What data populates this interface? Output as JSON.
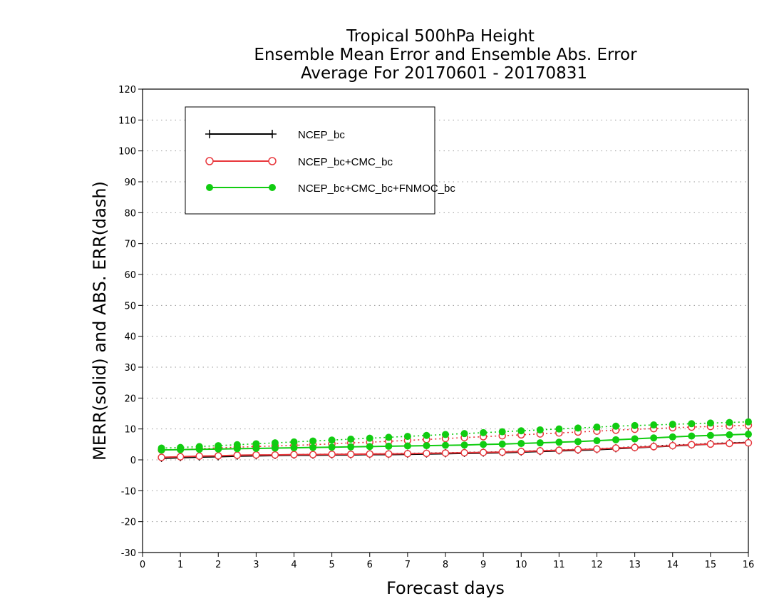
{
  "chart_data": {
    "type": "line",
    "title": [
      "Tropical 500hPa Height",
      "Ensemble Mean Error and Ensemble Abs. Error",
      "Average For 20170601 - 20170831"
    ],
    "xlabel": "Forecast days",
    "ylabel": "MERR(solid) and ABS. ERR(dash)",
    "xlim": [
      0,
      16
    ],
    "ylim": [
      -30,
      120
    ],
    "xticks": [
      "0",
      "1",
      "2",
      "3",
      "4",
      "5",
      "6",
      "7",
      "8",
      "9",
      "10",
      "11",
      "12",
      "13",
      "14",
      "15",
      "16"
    ],
    "yticks": [
      "-30",
      "-20",
      "-10",
      "0",
      "10",
      "20",
      "30",
      "40",
      "50",
      "60",
      "70",
      "80",
      "90",
      "100",
      "110",
      "120"
    ],
    "grid": true,
    "legend_placement": "top-left",
    "x": [
      0.5,
      1,
      1.5,
      2,
      2.5,
      3,
      3.5,
      4,
      4.5,
      5,
      5.5,
      6,
      6.5,
      7,
      7.5,
      8,
      8.5,
      9,
      9.5,
      10,
      10.5,
      11,
      11.5,
      12,
      12.5,
      13,
      13.5,
      14,
      14.5,
      15,
      15.5,
      16
    ],
    "series": [
      {
        "name": "NCEP_bc",
        "color": "#000000",
        "marker": "plus",
        "merr": [
          0.5,
          0.7,
          0.9,
          1.0,
          1.2,
          1.3,
          1.4,
          1.5,
          1.5,
          1.6,
          1.6,
          1.7,
          1.7,
          1.8,
          1.9,
          2.0,
          2.1,
          2.2,
          2.3,
          2.5,
          2.7,
          2.9,
          3.1,
          3.3,
          3.6,
          3.9,
          4.2,
          4.5,
          4.8,
          5.1,
          5.4,
          5.6
        ],
        "abs_err": [
          0.8,
          1.0,
          1.1,
          1.3,
          1.4,
          1.5,
          1.6,
          1.7,
          1.8,
          1.8,
          1.9,
          1.9,
          2.0,
          2.1,
          2.2,
          2.3,
          2.4,
          2.5,
          2.6,
          2.8,
          3.0,
          3.2,
          3.4,
          3.6,
          3.9,
          4.2,
          4.5,
          4.8,
          5.0,
          5.3,
          5.5,
          5.7
        ]
      },
      {
        "name": "NCEP_bc+CMC_bc",
        "color": "#e8373c",
        "marker": "open-circle",
        "merr": [
          0.8,
          1.0,
          1.2,
          1.3,
          1.5,
          1.6,
          1.6,
          1.7,
          1.7,
          1.8,
          1.8,
          1.9,
          1.9,
          2.0,
          2.1,
          2.2,
          2.3,
          2.4,
          2.5,
          2.7,
          2.9,
          3.1,
          3.3,
          3.5,
          3.8,
          4.0,
          4.3,
          4.6,
          4.9,
          5.1,
          5.3,
          5.5
        ],
        "abs_err": [
          3.2,
          3.4,
          3.6,
          3.9,
          4.1,
          4.3,
          4.5,
          4.7,
          4.9,
          5.2,
          5.5,
          5.7,
          6.0,
          6.3,
          6.6,
          6.9,
          7.2,
          7.5,
          7.8,
          8.1,
          8.4,
          8.7,
          9.0,
          9.3,
          9.6,
          9.9,
          10.1,
          10.4,
          10.6,
          10.8,
          11.0,
          11.2
        ]
      },
      {
        "name": "NCEP_bc+CMC_bc+FNMOC_bc",
        "color": "#11cc11",
        "marker": "filled-circle",
        "merr": [
          3.2,
          3.3,
          3.4,
          3.5,
          3.6,
          3.7,
          3.8,
          3.9,
          4.0,
          4.1,
          4.2,
          4.3,
          4.4,
          4.5,
          4.6,
          4.7,
          4.8,
          5.0,
          5.1,
          5.3,
          5.5,
          5.7,
          5.9,
          6.2,
          6.5,
          6.8,
          7.1,
          7.4,
          7.7,
          7.9,
          8.1,
          8.3
        ],
        "abs_err": [
          3.8,
          4.0,
          4.3,
          4.6,
          4.9,
          5.2,
          5.5,
          5.8,
          6.1,
          6.4,
          6.7,
          7.0,
          7.3,
          7.6,
          7.9,
          8.2,
          8.5,
          8.8,
          9.1,
          9.4,
          9.7,
          10.0,
          10.3,
          10.6,
          10.9,
          11.1,
          11.3,
          11.5,
          11.7,
          11.9,
          12.1,
          12.3
        ]
      }
    ]
  }
}
